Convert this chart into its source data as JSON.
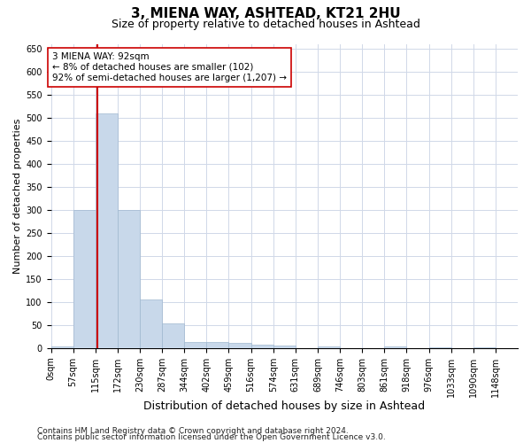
{
  "title1": "3, MIENA WAY, ASHTEAD, KT21 2HU",
  "title2": "Size of property relative to detached houses in Ashtead",
  "xlabel": "Distribution of detached houses by size in Ashtead",
  "ylabel": "Number of detached properties",
  "bar_labels": [
    "0sqm",
    "57sqm",
    "115sqm",
    "172sqm",
    "230sqm",
    "287sqm",
    "344sqm",
    "402sqm",
    "459sqm",
    "516sqm",
    "574sqm",
    "631sqm",
    "689sqm",
    "746sqm",
    "803sqm",
    "861sqm",
    "918sqm",
    "976sqm",
    "1033sqm",
    "1090sqm",
    "1148sqm"
  ],
  "bar_values": [
    3,
    300,
    510,
    300,
    105,
    53,
    13,
    13,
    11,
    8,
    5,
    0,
    4,
    0,
    0,
    3,
    0,
    2,
    0,
    2,
    0
  ],
  "bar_color": "#c8d8ea",
  "bar_edgecolor": "#a0b8d0",
  "grid_color": "#d0d8e8",
  "vline_color": "#cc0000",
  "annotation_text": "3 MIENA WAY: 92sqm\n← 8% of detached houses are smaller (102)\n92% of semi-detached houses are larger (1,207) →",
  "annotation_box_color": "#ffffff",
  "annotation_box_edgecolor": "#cc0000",
  "ylim": [
    0,
    660
  ],
  "yticks": [
    0,
    50,
    100,
    150,
    200,
    250,
    300,
    350,
    400,
    450,
    500,
    550,
    600,
    650
  ],
  "footer1": "Contains HM Land Registry data © Crown copyright and database right 2024.",
  "footer2": "Contains public sector information licensed under the Open Government Licence v3.0.",
  "title1_fontsize": 11,
  "title2_fontsize": 9,
  "xlabel_fontsize": 9,
  "ylabel_fontsize": 8,
  "tick_fontsize": 7,
  "annotation_fontsize": 7.5,
  "footer_fontsize": 6.5,
  "vline_x": 1.603
}
